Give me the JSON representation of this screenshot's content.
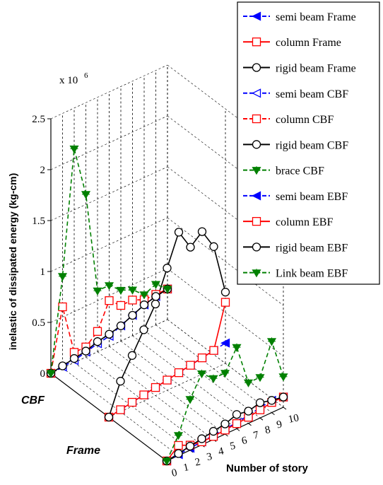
{
  "chart_data": {
    "type": "line",
    "projection": "3d",
    "title": "",
    "ylabel": "inelastic of dissipated energy (kg-cm)",
    "xlabel": "Number of story",
    "z_multiplier_label": "x 10",
    "z_multiplier_exponent": "6",
    "zlim": [
      0,
      2.5
    ],
    "z_ticks": [
      "0",
      "0.5",
      "1",
      "1.5",
      "2",
      "2.5"
    ],
    "x_ticks": [
      "0",
      "1",
      "2",
      "3",
      "4",
      "5",
      "6",
      "7",
      "8",
      "9",
      "10"
    ],
    "depth_categories": [
      "CBF",
      "Frame",
      "EBF"
    ],
    "legend_position": "top-right",
    "grid": true,
    "x": [
      0,
      1,
      2,
      3,
      4,
      5,
      6,
      7,
      8,
      9,
      10
    ],
    "series": [
      {
        "name": "semi beam Frame",
        "group": "Frame",
        "color": "#0000ff",
        "dash": "7,4",
        "marker": "tri-left",
        "filled": true,
        "values": [
          0,
          0.02,
          0.04,
          0.06,
          0.08,
          0.1,
          0.12,
          0.14,
          0.16,
          0.18,
          0.2
        ]
      },
      {
        "name": "column Frame",
        "group": "Frame",
        "color": "#ff0000",
        "dash": "",
        "marker": "square",
        "filled": false,
        "values": [
          0,
          0.02,
          0.04,
          0.06,
          0.08,
          0.1,
          0.12,
          0.14,
          0.16,
          0.18,
          0.6
        ]
      },
      {
        "name": "rigid beam Frame",
        "group": "Frame",
        "color": "#000000",
        "dash": "",
        "marker": "circle",
        "filled": false,
        "values": [
          0,
          0.3,
          0.5,
          0.7,
          0.9,
          1.2,
          1.5,
          1.3,
          1.4,
          1.2,
          0.7
        ]
      },
      {
        "name": "semi beam CBF",
        "group": "CBF",
        "color": "#0000ff",
        "dash": "7,4",
        "marker": "tri-left",
        "filled": false,
        "values": [
          0,
          0.01,
          0.02,
          0.05,
          0.08,
          0.1,
          0.15,
          0.2,
          0.25,
          0.28,
          0.3
        ]
      },
      {
        "name": "column CBF",
        "group": "CBF",
        "color": "#ff0000",
        "dash": "7,4",
        "marker": "square",
        "filled": false,
        "values": [
          0,
          0.6,
          0.1,
          0.1,
          0.2,
          0.45,
          0.35,
          0.35,
          0.3,
          0.3,
          0.3
        ]
      },
      {
        "name": "rigid beam CBF",
        "group": "CBF",
        "color": "#000000",
        "dash": "",
        "marker": "circle",
        "filled": false,
        "values": [
          0,
          0.02,
          0.04,
          0.06,
          0.1,
          0.12,
          0.15,
          0.2,
          0.25,
          0.28,
          0.3
        ]
      },
      {
        "name": "brace CBF",
        "group": "CBF",
        "color": "#008000",
        "dash": "6,4",
        "marker": "tri-down",
        "filled": true,
        "values": [
          0,
          0.9,
          2.1,
          1.6,
          0.6,
          0.6,
          0.5,
          0.45,
          0.35,
          0.4,
          0.3
        ]
      },
      {
        "name": "semi beam EBF",
        "group": "EBF",
        "color": "#0000ff",
        "dash": "7,4",
        "marker": "tri-left",
        "filled": true,
        "values": [
          0,
          0.01,
          0.02,
          0.03,
          0.04,
          0.05,
          0.06,
          0.08,
          0.1,
          0.12,
          0.1
        ]
      },
      {
        "name": "column EBF",
        "group": "EBF",
        "color": "#ff0000",
        "dash": "",
        "marker": "square",
        "filled": false,
        "values": [
          0,
          0.1,
          0.05,
          0.03,
          0.03,
          0.04,
          0.05,
          0.06,
          0.08,
          0.1,
          0.1
        ]
      },
      {
        "name": "rigid beam EBF",
        "group": "EBF",
        "color": "#000000",
        "dash": "",
        "marker": "circle",
        "filled": false,
        "values": [
          0,
          0.02,
          0.04,
          0.06,
          0.08,
          0.1,
          0.14,
          0.12,
          0.15,
          0.12,
          0.1
        ]
      },
      {
        "name": "Link beam EBF",
        "group": "EBF",
        "color": "#008000",
        "dash": "6,4",
        "marker": "tri-down",
        "filled": true,
        "values": [
          0,
          0.2,
          0.5,
          0.7,
          0.6,
          0.6,
          0.8,
          0.4,
          0.4,
          0.7,
          0.3
        ]
      }
    ]
  }
}
